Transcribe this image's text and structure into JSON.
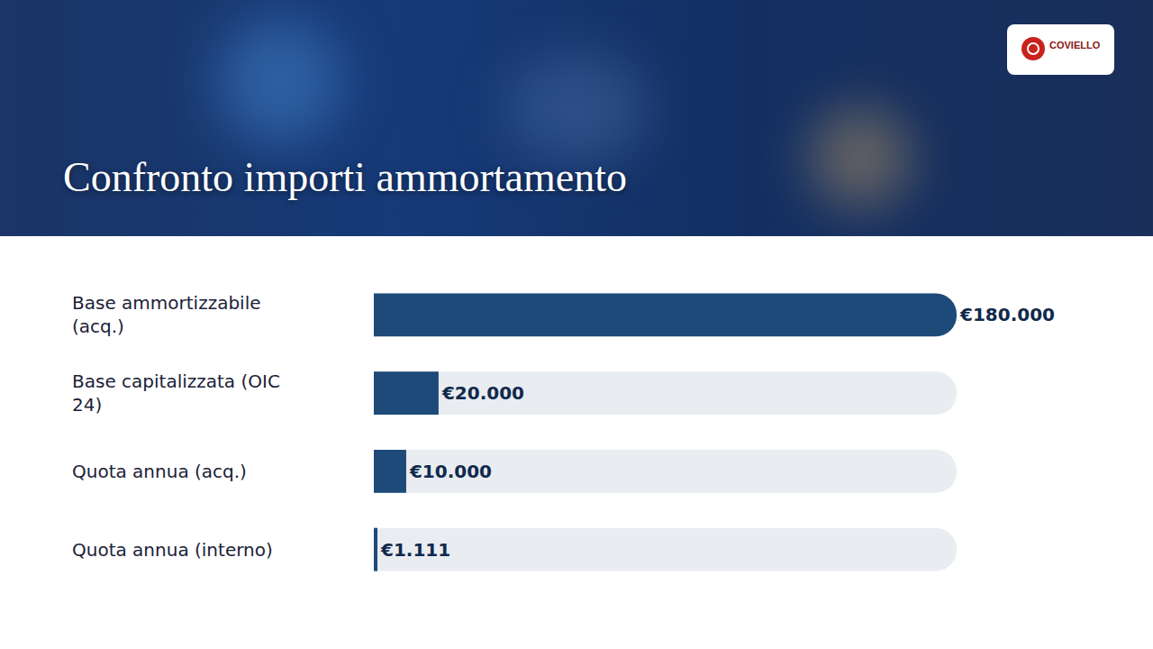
{
  "header": {
    "logo": "COVIELLO"
  },
  "chart_data": {
    "type": "bar",
    "orientation": "horizontal",
    "title": "Confronto importi ammortamento",
    "categories": [
      "Base ammortizzabile (acq.)",
      "Base capitalizzata (OIC 24)",
      "Quota annua (acq.)",
      "Quota annua (interno)"
    ],
    "values": [
      180000,
      20000,
      10000,
      1111
    ],
    "value_labels": [
      "€180.000",
      "€20.000",
      "€10.000",
      "€1.111"
    ],
    "data_labels": true,
    "color": "#1d4a78",
    "xlim": [
      0,
      180000
    ],
    "tick_labels": "y",
    "grid": false
  }
}
